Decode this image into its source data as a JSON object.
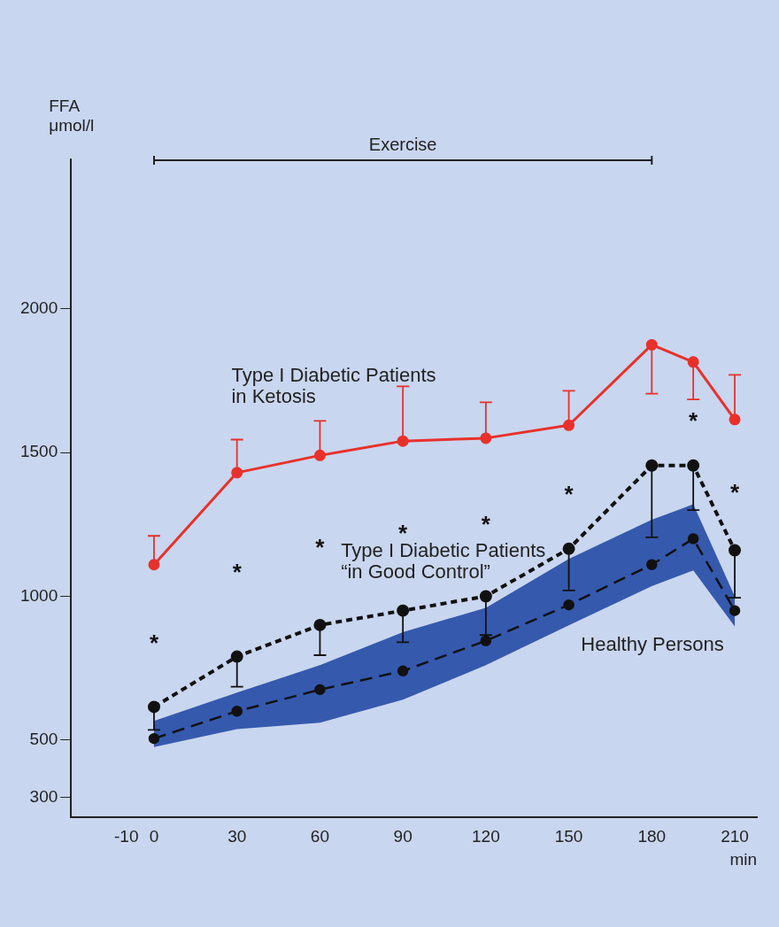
{
  "chart_data": {
    "type": "line",
    "ylabel": "FFA\nμmol/l",
    "xlabel": "min",
    "x": [
      0,
      30,
      60,
      90,
      120,
      150,
      180,
      195,
      210
    ],
    "xlim": [
      -30,
      218
    ],
    "xticks": [
      -10,
      0,
      30,
      60,
      90,
      120,
      150,
      180,
      210
    ],
    "ylim": [
      230,
      2520
    ],
    "yticks": [
      300,
      500,
      1000,
      1500,
      2000
    ],
    "marker": "circle",
    "series": [
      {
        "name": "Type I Diabetic Patients\nin Ketosis",
        "color": "#e8312a",
        "line_style": "solid",
        "values": [
          1110,
          1430,
          1490,
          1540,
          1550,
          1595,
          1875,
          1815,
          1615
        ],
        "errors": [
          [
            1110,
            1210
          ],
          [
            1430,
            1545
          ],
          [
            1490,
            1610
          ],
          [
            1540,
            1730
          ],
          [
            1550,
            1675
          ],
          [
            1595,
            1715
          ],
          [
            1705,
            1875
          ],
          [
            1685,
            1815
          ],
          [
            1615,
            1770
          ]
        ]
      },
      {
        "name": "Type I Diabetic Patients\n“in Good Control”",
        "color": "#111111",
        "line_style": "dotted",
        "values": [
          615,
          790,
          900,
          950,
          1000,
          1165,
          1455,
          1455,
          1160
        ],
        "errors": [
          [
            535,
            615
          ],
          [
            685,
            790
          ],
          [
            795,
            900
          ],
          [
            840,
            950
          ],
          [
            865,
            1000
          ],
          [
            1020,
            1165
          ],
          [
            1205,
            1455
          ],
          [
            1300,
            1455
          ],
          [
            995,
            1160
          ]
        ]
      },
      {
        "name": "Healthy Persons",
        "color": "#111111",
        "line_style": "dashed",
        "values": [
          505,
          600,
          675,
          740,
          845,
          970,
          1110,
          1200,
          950
        ],
        "lower": [
          475,
          538,
          560,
          640,
          760,
          899,
          1035,
          1090,
          895
        ],
        "upper": [
          566,
          665,
          760,
          875,
          960,
          1130,
          1266,
          1320,
          1000
        ]
      }
    ],
    "annotations": [
      "Exercise",
      "*",
      "*",
      "*",
      "*",
      "*",
      "*",
      "*",
      "*"
    ]
  }
}
